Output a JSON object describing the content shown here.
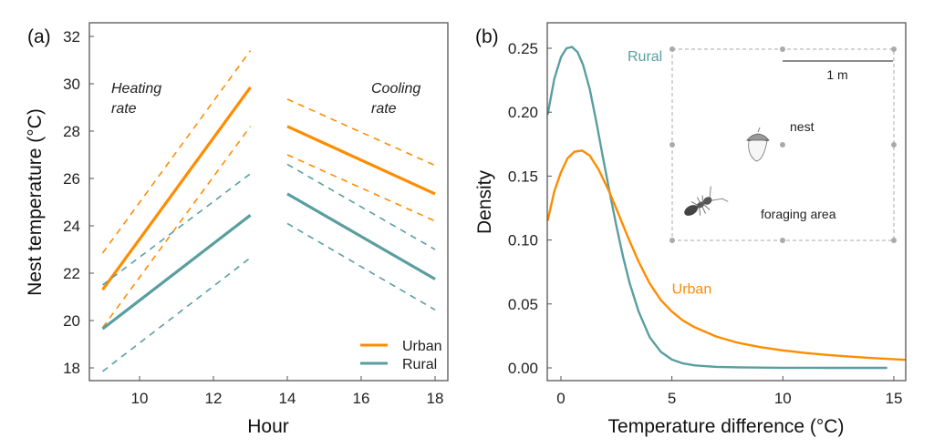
{
  "colors": {
    "urban": "#ff8c00",
    "rural": "#5a9ea0",
    "axis": "#555555",
    "inset": "#aaaaaa"
  },
  "chart_data": [
    {
      "panel": "(a)",
      "type": "line",
      "title": "",
      "xlabel": "Hour",
      "ylabel": "Nest temperature (°C)",
      "xlim": [
        8.5,
        18.35
      ],
      "ylim": [
        17.45,
        32.6
      ],
      "xticks": [
        10,
        12,
        14,
        16,
        18
      ],
      "yticks": [
        18,
        20,
        22,
        24,
        26,
        28,
        30,
        32
      ],
      "grid": false,
      "legend": {
        "placement": "bottom-right",
        "entries": [
          {
            "name": "Urban",
            "color_key": "urban"
          },
          {
            "name": "Rural",
            "color_key": "rural"
          }
        ]
      },
      "annotations": [
        {
          "text": [
            "Heating",
            "rate"
          ],
          "x": 9.3,
          "y": 30.0
        },
        {
          "text": [
            "Cooling",
            "rate"
          ],
          "x": 16.25,
          "y": 30.0
        }
      ],
      "series": [
        {
          "name": "Urban",
          "group": "Heating rate",
          "style": "solid",
          "x": [
            9,
            13
          ],
          "y": [
            21.3,
            29.85
          ]
        },
        {
          "name": "Urban",
          "group": "Heating rate",
          "style": "dashed",
          "x": [
            9,
            13
          ],
          "y": [
            22.85,
            31.4
          ]
        },
        {
          "name": "Urban",
          "group": "Heating rate",
          "style": "dashed",
          "x": [
            9,
            13
          ],
          "y": [
            19.7,
            28.2
          ]
        },
        {
          "name": "Rural",
          "group": "Heating rate",
          "style": "solid",
          "x": [
            9,
            13
          ],
          "y": [
            19.65,
            24.45
          ]
        },
        {
          "name": "Rural",
          "group": "Heating rate",
          "style": "dashed",
          "x": [
            9,
            13
          ],
          "y": [
            21.5,
            26.2
          ]
        },
        {
          "name": "Rural",
          "group": "Heating rate",
          "style": "dashed",
          "x": [
            9,
            13
          ],
          "y": [
            17.85,
            22.65
          ]
        },
        {
          "name": "Urban",
          "group": "Cooling rate",
          "style": "solid",
          "x": [
            14,
            18
          ],
          "y": [
            28.2,
            25.35
          ]
        },
        {
          "name": "Urban",
          "group": "Cooling rate",
          "style": "dashed",
          "x": [
            14,
            18
          ],
          "y": [
            29.35,
            26.55
          ]
        },
        {
          "name": "Urban",
          "group": "Cooling rate",
          "style": "dashed",
          "x": [
            14,
            18
          ],
          "y": [
            27.0,
            24.2
          ]
        },
        {
          "name": "Rural",
          "group": "Cooling rate",
          "style": "solid",
          "x": [
            14,
            18
          ],
          "y": [
            25.35,
            21.75
          ]
        },
        {
          "name": "Rural",
          "group": "Cooling rate",
          "style": "dashed",
          "x": [
            14,
            18
          ],
          "y": [
            26.6,
            23.0
          ]
        },
        {
          "name": "Rural",
          "group": "Cooling rate",
          "style": "dashed",
          "x": [
            14,
            18
          ],
          "y": [
            24.1,
            20.45
          ]
        }
      ]
    },
    {
      "panel": "(b)",
      "type": "line",
      "title": "",
      "xlabel": "Temperature difference (°C)",
      "ylabel": "Density",
      "xlim": [
        -0.6,
        15.55
      ],
      "ylim": [
        -0.01,
        0.27
      ],
      "xticks": [
        0,
        5,
        10,
        15
      ],
      "yticks": [
        0.0,
        0.05,
        0.1,
        0.15,
        0.2,
        0.25
      ],
      "ytick_labels": [
        "0.00",
        "0.05",
        "0.10",
        "0.15",
        "0.20",
        "0.25"
      ],
      "grid": false,
      "series": [
        {
          "name": "Rural",
          "label_pos": {
            "x": 3.0,
            "y": 0.24
          },
          "x": [
            -0.6,
            -0.3,
            0.0,
            0.25,
            0.5,
            0.75,
            1.0,
            1.3,
            1.6,
            1.9,
            2.2,
            2.5,
            2.8,
            3.1,
            3.5,
            4.0,
            4.5,
            5.0,
            5.5,
            6.0,
            7.0,
            8.0,
            10.0,
            12.0,
            14.7
          ],
          "y": [
            0.198,
            0.226,
            0.243,
            0.25,
            0.251,
            0.247,
            0.237,
            0.218,
            0.192,
            0.164,
            0.137,
            0.111,
            0.087,
            0.066,
            0.044,
            0.024,
            0.0125,
            0.0065,
            0.0035,
            0.002,
            0.0008,
            0.0004,
            0.0001,
            0.0,
            0.0
          ]
        },
        {
          "name": "Urban",
          "label_pos": {
            "x": 5.0,
            "y": 0.058
          },
          "x": [
            -0.6,
            -0.3,
            0.0,
            0.3,
            0.6,
            0.95,
            1.3,
            1.7,
            2.2,
            2.6,
            3.0,
            3.5,
            4.0,
            4.5,
            5.0,
            5.5,
            6.0,
            7.0,
            8.0,
            9.0,
            10.0,
            11.0,
            12.0,
            13.0,
            14.0,
            15.55
          ],
          "y": [
            0.115,
            0.138,
            0.153,
            0.164,
            0.169,
            0.17,
            0.166,
            0.155,
            0.137,
            0.12,
            0.103,
            0.083,
            0.066,
            0.053,
            0.044,
            0.037,
            0.032,
            0.0245,
            0.0195,
            0.0162,
            0.0137,
            0.0117,
            0.0101,
            0.0088,
            0.0077,
            0.0063
          ]
        }
      ],
      "inset": {
        "scale_bar_label": "1 m",
        "nest_label": "nest",
        "foraging_label": "foraging area",
        "nest_icon": "acorn-icon",
        "ant_icon": "ant-icon"
      }
    }
  ]
}
